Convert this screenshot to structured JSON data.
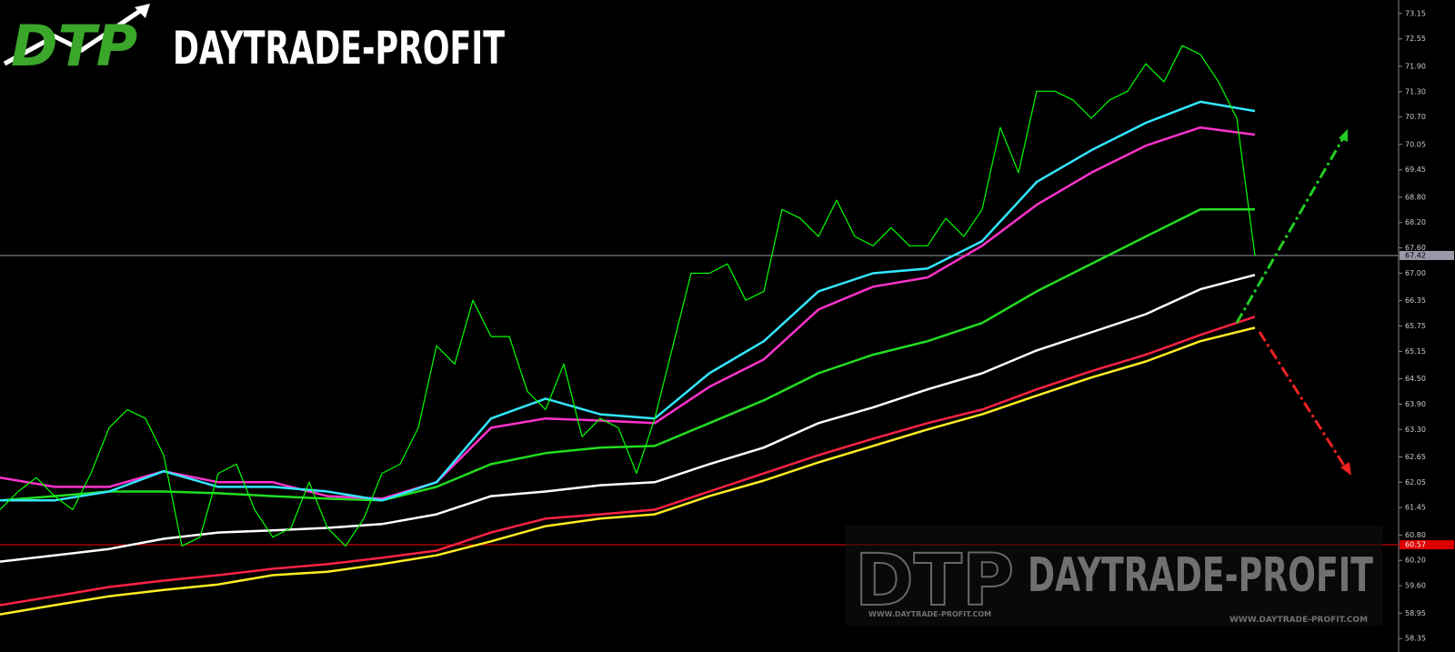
{
  "chart_data": {
    "type": "line",
    "logo": {
      "mark": "DTP",
      "name": "DAYTRADE-PROFIT"
    },
    "watermark": {
      "mark": "DTP",
      "name": "DAYTRADE-PROFIT",
      "url": "WWW.DAYTRADE-PROFIT.COM"
    },
    "ylim": [
      58.03,
      73.47
    ],
    "yticks": [
      {
        "value": 73.15,
        "label": "73.15"
      },
      {
        "value": 72.55,
        "label": "72.55"
      },
      {
        "value": 71.9,
        "label": "71.90"
      },
      {
        "value": 71.3,
        "label": "71.30"
      },
      {
        "value": 70.7,
        "label": "70.70"
      },
      {
        "value": 70.05,
        "label": "70.05"
      },
      {
        "value": 69.45,
        "label": "69.45"
      },
      {
        "value": 68.8,
        "label": "68.80"
      },
      {
        "value": 68.2,
        "label": "68.20"
      },
      {
        "value": 67.6,
        "label": "67.60"
      },
      {
        "value": 67.0,
        "label": "67.00"
      },
      {
        "value": 66.35,
        "label": "66.35"
      },
      {
        "value": 65.75,
        "label": "65.75"
      },
      {
        "value": 65.15,
        "label": "65.15"
      },
      {
        "value": 64.5,
        "label": "64.50"
      },
      {
        "value": 63.9,
        "label": "63.90"
      },
      {
        "value": 63.3,
        "label": "63.30"
      },
      {
        "value": 62.65,
        "label": "62.65"
      },
      {
        "value": 62.05,
        "label": "62.05"
      },
      {
        "value": 61.45,
        "label": "61.45"
      },
      {
        "value": 60.8,
        "label": "60.80"
      },
      {
        "value": 60.2,
        "label": "60.20"
      },
      {
        "value": 59.6,
        "label": "59.60"
      },
      {
        "value": 58.95,
        "label": "58.95"
      },
      {
        "value": 58.35,
        "label": "58.35"
      }
    ],
    "last_price": 67.42,
    "level": 60.57,
    "series": [
      {
        "color": "#00ff00",
        "values": [
          61.4,
          61.83,
          62.16,
          61.72,
          61.4,
          62.26,
          63.34,
          63.77,
          63.56,
          62.69,
          60.54,
          60.75,
          62.26,
          62.48,
          61.4,
          60.75,
          60.97,
          62.05,
          60.97,
          60.54,
          61.19,
          62.26,
          62.48,
          63.34,
          65.28,
          64.85,
          66.36,
          65.5,
          65.5,
          64.2,
          63.77,
          64.85,
          63.13,
          63.56,
          63.34,
          62.26,
          63.56,
          65.28,
          67.0,
          67.0,
          67.22,
          66.36,
          66.57,
          68.51,
          68.3,
          67.87,
          68.73,
          67.87,
          67.65,
          68.08,
          67.65,
          67.65,
          68.3,
          67.87,
          68.51,
          70.45,
          69.38,
          71.31,
          71.31,
          71.1,
          70.67,
          71.1,
          71.31,
          71.96,
          71.53,
          72.39,
          72.18,
          71.53,
          70.67,
          67.42
        ]
      },
      {
        "color": "#33e6ff",
        "values": [
          61.62,
          61.62,
          61.83,
          62.31,
          61.94,
          61.94,
          61.83,
          61.62,
          62.05,
          63.56,
          64.03,
          63.66,
          63.56,
          64.63,
          65.39,
          66.57,
          67.0,
          67.11,
          67.76,
          69.16,
          69.91,
          70.56,
          71.06,
          70.84
        ]
      },
      {
        "color": "#ff33cc",
        "values": [
          62.16,
          61.94,
          61.94,
          62.31,
          62.05,
          62.05,
          61.72,
          61.66,
          62.05,
          63.34,
          63.56,
          63.51,
          63.45,
          64.31,
          64.96,
          66.14,
          66.68,
          66.9,
          67.65,
          68.62,
          69.38,
          70.02,
          70.45,
          70.28
        ]
      },
      {
        "color": "#22dd22",
        "values": [
          61.62,
          61.72,
          61.83,
          61.83,
          61.79,
          61.72,
          61.66,
          61.62,
          61.94,
          62.48,
          62.74,
          62.87,
          62.91,
          63.45,
          63.99,
          64.63,
          65.07,
          65.39,
          65.82,
          66.57,
          67.22,
          67.87,
          68.51,
          68.51
        ]
      },
      {
        "color": "#ffffff",
        "values": [
          60.17,
          60.32,
          60.47,
          60.71,
          60.86,
          60.91,
          60.97,
          61.06,
          61.29,
          61.72,
          61.83,
          61.98,
          62.05,
          62.48,
          62.87,
          63.45,
          63.82,
          64.25,
          64.63,
          65.17,
          65.6,
          66.03,
          66.62,
          66.96
        ]
      },
      {
        "color": "#ff2244",
        "values": [
          59.14,
          59.35,
          59.57,
          59.72,
          59.85,
          60.0,
          60.11,
          60.26,
          60.43,
          60.86,
          61.19,
          61.29,
          61.4,
          61.83,
          62.26,
          62.69,
          63.08,
          63.45,
          63.77,
          64.25,
          64.68,
          65.07,
          65.54,
          65.97
        ]
      },
      {
        "color": "#ffee22",
        "values": [
          58.92,
          59.14,
          59.35,
          59.5,
          59.63,
          59.85,
          59.93,
          60.11,
          60.32,
          60.65,
          61.01,
          61.19,
          61.29,
          61.72,
          62.09,
          62.52,
          62.91,
          63.3,
          63.66,
          64.1,
          64.53,
          64.91,
          65.39,
          65.71
        ]
      }
    ]
  }
}
